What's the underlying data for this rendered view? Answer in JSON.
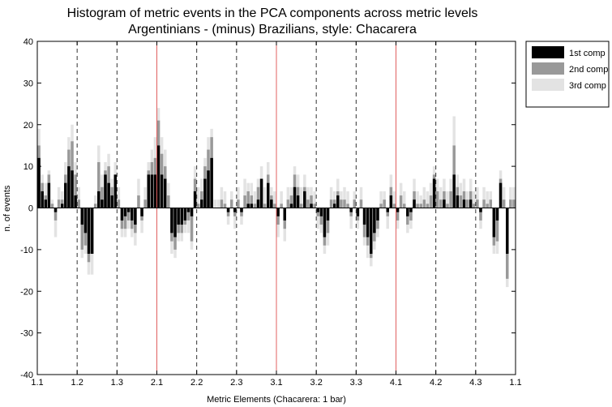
{
  "chart_data": {
    "type": "bar",
    "title": [
      "Histogram of  metric events in the PCA components across metric levels",
      "Argentinians - (minus) Brazilians, style: Chacarera"
    ],
    "xlabel": "Metric Elements (Chacarera: 1 bar)",
    "ylabel": "n. of events",
    "ylim": [
      -40,
      40
    ],
    "yticks": [
      -40,
      -30,
      -20,
      -10,
      0,
      10,
      20,
      30,
      40
    ],
    "xtick_labels": [
      "1.1",
      "1.2",
      "1.3",
      "2.1",
      "2.2",
      "2.3",
      "3.1",
      "3.2",
      "3.3",
      "4.1",
      "4.2",
      "4.3",
      "1.1"
    ],
    "red_separators_at_tick": [
      3,
      6,
      9
    ],
    "bins_per_section": 12,
    "legend_position": "top-right (outside plot)",
    "grid": false,
    "series": [
      {
        "name": "1st comp",
        "color": "#000000",
        "values": [
          12,
          4,
          2,
          6,
          0,
          -1,
          0,
          1,
          6,
          10,
          9,
          3,
          0,
          -4,
          -6,
          -11,
          -11,
          0,
          4,
          2,
          8,
          6,
          3,
          8,
          0,
          -3,
          -2,
          -1,
          -3,
          -4,
          0,
          -2,
          0,
          8,
          8,
          8,
          15,
          8,
          7,
          0,
          -6,
          -7,
          -4,
          -4,
          -3,
          -1,
          -2,
          4,
          0,
          2,
          7,
          9,
          12,
          0,
          0,
          0,
          0,
          -1,
          0,
          -1,
          0,
          -1,
          0,
          1,
          1,
          0,
          2,
          7,
          0,
          6,
          2,
          0,
          -2,
          0,
          -3,
          0,
          1,
          5,
          3,
          0,
          4,
          0,
          1,
          0,
          -1,
          -2,
          -7,
          -3,
          0,
          1,
          3,
          0,
          0,
          0,
          -1,
          0,
          -2,
          0,
          -4,
          -7,
          -11,
          -6,
          -3,
          0,
          0,
          -1,
          3,
          0,
          -1,
          0,
          0,
          -2,
          -1,
          2,
          0,
          0,
          0,
          0,
          0,
          7,
          0,
          0,
          2,
          0,
          0,
          8,
          3,
          0,
          2,
          0,
          2,
          0,
          0,
          -1,
          0,
          0,
          0,
          -7,
          -3,
          6,
          0,
          -11,
          0,
          0
        ]
      },
      {
        "name": "2nd comp",
        "color": "#999999",
        "values": [
          3,
          2,
          1,
          2,
          1,
          -2,
          2,
          1,
          2,
          4,
          7,
          5,
          2,
          -6,
          -3,
          -2,
          0,
          1,
          7,
          3,
          1,
          4,
          2,
          0,
          2,
          -2,
          -3,
          -2,
          -2,
          2,
          3,
          1,
          2,
          1,
          3,
          4,
          6,
          5,
          3,
          3,
          -2,
          -3,
          -2,
          -2,
          -1,
          2,
          6,
          3,
          1,
          2,
          3,
          5,
          5,
          0,
          0,
          2,
          1,
          1,
          2,
          1,
          2,
          1,
          3,
          3,
          2,
          1,
          3,
          0,
          1,
          2,
          1,
          1,
          2,
          1,
          2,
          2,
          2,
          3,
          2,
          1,
          1,
          2,
          2,
          1,
          1,
          2,
          -2,
          -3,
          2,
          1,
          1,
          2,
          2,
          1,
          1,
          2,
          -1,
          2,
          -3,
          -2,
          -1,
          -2,
          -2,
          1,
          2,
          1,
          2,
          1,
          -2,
          3,
          1,
          -2,
          -2,
          2,
          1,
          1,
          2,
          1,
          3,
          1,
          4,
          2,
          2,
          1,
          4,
          7,
          2,
          3,
          2,
          2,
          2,
          1,
          2,
          -2,
          2,
          1,
          2,
          -2,
          -5,
          1,
          2,
          -6,
          2,
          2
        ]
      },
      {
        "name": "3rd comp",
        "color": "#e3e3e3",
        "values": [
          4,
          2,
          3,
          1,
          1,
          -4,
          3,
          2,
          3,
          3,
          4,
          3,
          3,
          -2,
          -2,
          -3,
          -5,
          2,
          4,
          3,
          2,
          3,
          2,
          3,
          3,
          -2,
          -2,
          -2,
          -2,
          3,
          4,
          3,
          3,
          2,
          3,
          5,
          3,
          4,
          4,
          3,
          -3,
          -2,
          -2,
          -2,
          -2,
          3,
          2,
          3,
          4,
          3,
          2,
          3,
          2,
          2,
          2,
          3,
          3,
          2,
          2,
          3,
          3,
          2,
          4,
          2,
          3,
          3,
          2,
          3,
          4,
          3,
          2,
          3,
          3,
          3,
          3,
          3,
          2,
          2,
          3,
          4,
          3,
          3,
          2,
          3,
          3,
          2,
          -2,
          -3,
          3,
          2,
          3,
          2,
          3,
          3,
          3,
          2,
          -2,
          3,
          -2,
          -3,
          -2,
          -2,
          -2,
          3,
          2,
          3,
          3,
          3,
          -2,
          3,
          3,
          -2,
          -2,
          3,
          3,
          2,
          3,
          3,
          3,
          2,
          3,
          3,
          3,
          3,
          3,
          7,
          3,
          3,
          3,
          2,
          3,
          3,
          3,
          -2,
          3,
          3,
          2,
          -2,
          -3,
          2,
          3,
          -2,
          3,
          3
        ]
      }
    ]
  }
}
